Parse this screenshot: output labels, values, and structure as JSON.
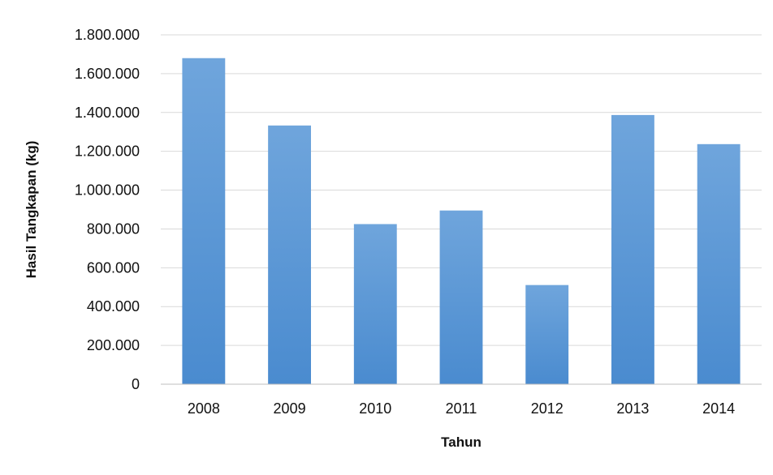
{
  "chart_data": {
    "type": "bar",
    "title": "",
    "xlabel": "Tahun",
    "ylabel": "Hasil Tangkapan (kg)",
    "categories": [
      "2008",
      "2009",
      "2010",
      "2011",
      "2012",
      "2013",
      "2014"
    ],
    "values": [
      1680000,
      1333000,
      825000,
      895000,
      511000,
      1387000,
      1237000
    ],
    "ylim": [
      0,
      1800000
    ],
    "yticks": [
      0,
      200000,
      400000,
      600000,
      800000,
      1000000,
      1200000,
      1400000,
      1600000,
      1800000
    ],
    "ytick_labels": [
      "0",
      "200.000",
      "400.000",
      "600.000",
      "800.000",
      "1.000.000",
      "1.200.000",
      "1.400.000",
      "1.600.000",
      "1.800.000"
    ],
    "grid": true,
    "legend": "none",
    "colors": {
      "bar_top": "#6fa5dc",
      "bar_bottom": "#4a8bcf",
      "grid": "#d9d9d9",
      "axis": "#bfbfbf"
    }
  }
}
